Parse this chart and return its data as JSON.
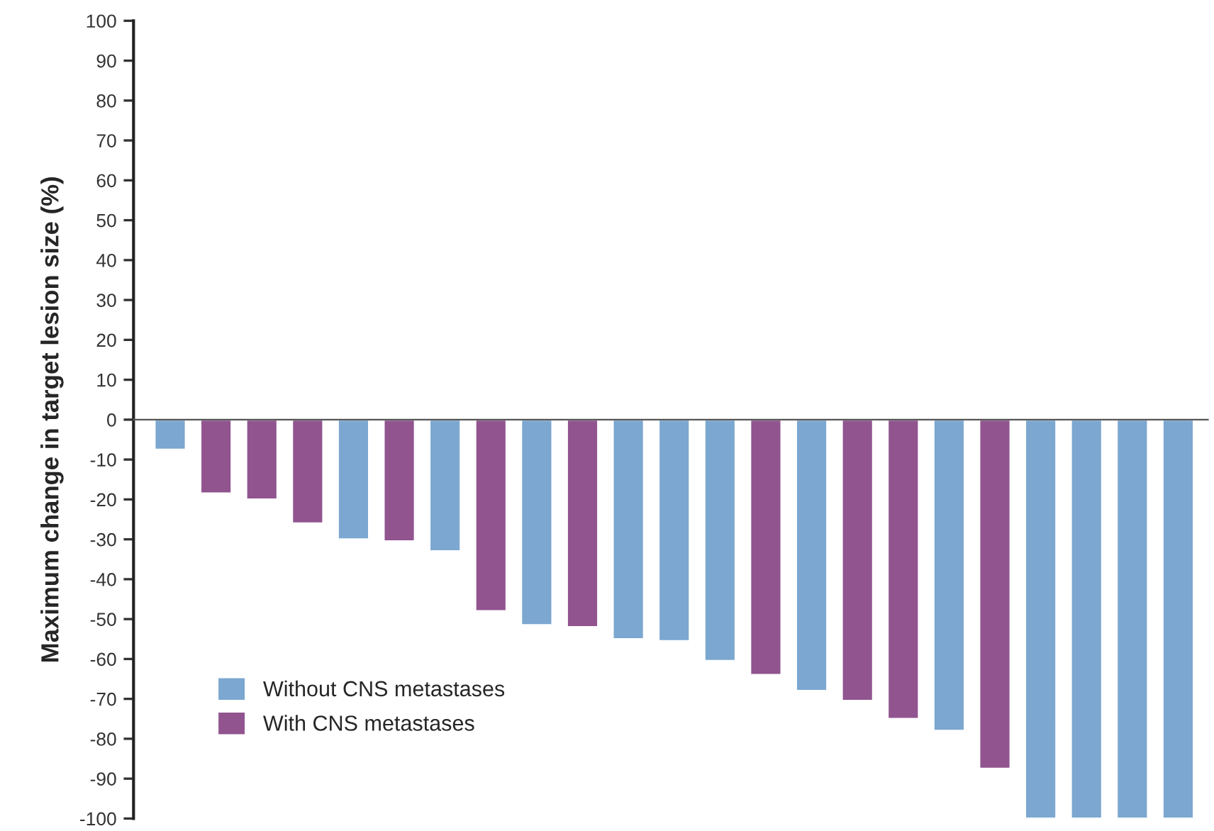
{
  "chart_data": {
    "type": "bar",
    "ylabel": "Maximum change in target lesion size (%)",
    "categories": [
      null,
      null,
      null,
      null,
      null,
      null,
      null,
      null,
      null,
      null,
      null,
      null,
      null,
      null,
      null,
      null,
      null,
      null,
      null,
      null,
      null,
      null,
      null
    ],
    "series": [
      {
        "name": "Without CNS metastases",
        "color": "#7ba7d0",
        "values": [
          -7.5,
          null,
          null,
          null,
          -30,
          null,
          -33,
          null,
          -51.5,
          null,
          -55,
          -55.5,
          -60.5,
          null,
          -68,
          null,
          null,
          -78,
          null,
          -100,
          -100,
          -100,
          -100
        ]
      },
      {
        "name": "With CNS metastases",
        "color": "#91548f",
        "values": [
          null,
          -18.5,
          -20,
          -26,
          null,
          -30.5,
          null,
          -48,
          null,
          -52,
          null,
          null,
          null,
          -64,
          null,
          -70.5,
          -75,
          null,
          -87.5,
          null,
          null,
          null,
          null
        ]
      }
    ],
    "ylim": [
      -100,
      100
    ],
    "yticks": [
      -100,
      -90,
      -80,
      -70,
      -60,
      -50,
      -40,
      -30,
      -20,
      -10,
      0,
      10,
      20,
      30,
      40,
      50,
      60,
      70,
      80,
      90,
      100
    ],
    "legend": "bottom left",
    "tick_labels": "y"
  }
}
